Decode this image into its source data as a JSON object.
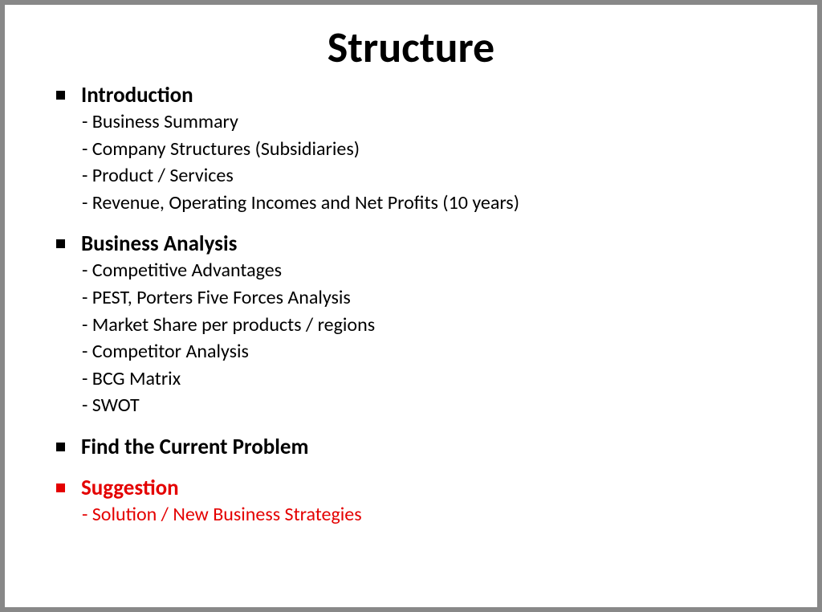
{
  "title": "Structure",
  "colors": {
    "black": "#000000",
    "red": "#e40000",
    "background": "#ffffff",
    "border": "#888888"
  },
  "typography": {
    "title_fontsize": 54,
    "header_fontsize": 27,
    "subitem_fontsize": 24,
    "font_family": "Segoe UI, Calibri, Trebuchet MS, sans-serif"
  },
  "sections": [
    {
      "header": "Introduction",
      "color": "black",
      "items": [
        "- Business Summary",
        "- Company Structures (Subsidiaries)",
        "- Product / Services",
        "- Revenue, Operating Incomes and Net Profits (10 years)"
      ]
    },
    {
      "header": "Business Analysis",
      "color": "black",
      "items": [
        "- Competitive Advantages",
        "- PEST, Porters Five Forces Analysis",
        "- Market Share per products / regions",
        "- Competitor Analysis",
        "- BCG Matrix",
        "- SWOT"
      ]
    },
    {
      "header": "Find the Current Problem",
      "color": "black",
      "items": []
    },
    {
      "header": "Suggestion",
      "color": "red",
      "items": [
        "- Solution / New Business Strategies"
      ]
    }
  ]
}
